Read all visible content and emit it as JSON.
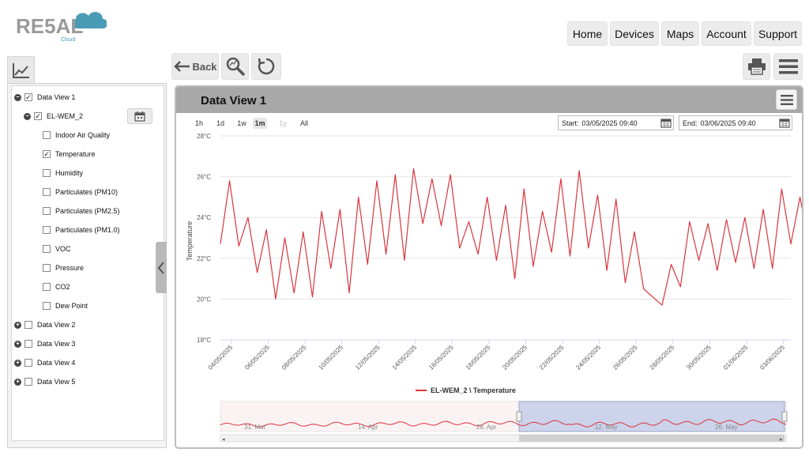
{
  "logo": {
    "text": "RE5AL",
    "sub": "Cloud"
  },
  "nav": [
    {
      "label": "Home"
    },
    {
      "label": "Devices"
    },
    {
      "label": "Maps"
    },
    {
      "label": "Account"
    },
    {
      "label": "Support"
    }
  ],
  "toolbar": {
    "back_label": "Back"
  },
  "tree": {
    "view1": "Data View 1",
    "device": "EL-WEM_2",
    "sensors": [
      {
        "label": "Indoor Air Quality",
        "checked": false
      },
      {
        "label": "Temperature",
        "checked": true
      },
      {
        "label": "Humidity",
        "checked": false
      },
      {
        "label": "Particulates (PM10)",
        "checked": false
      },
      {
        "label": "Particulates (PM2.5)",
        "checked": false
      },
      {
        "label": "Particulates (PM1.0)",
        "checked": false
      },
      {
        "label": "VOC",
        "checked": false
      },
      {
        "label": "Pressure",
        "checked": false
      },
      {
        "label": "CO2",
        "checked": false
      },
      {
        "label": "Dew Point",
        "checked": false
      }
    ],
    "other_views": [
      "Data View 2",
      "Data View 3",
      "Data View 4",
      "Data View 5"
    ]
  },
  "panel": {
    "title": "Data View 1"
  },
  "range_buttons": [
    "1h",
    "1d",
    "1w",
    "1m",
    "1y",
    "All"
  ],
  "range_selected": "1m",
  "range_disabled": "1y",
  "start": {
    "label": "Start:",
    "value": "03/05/2025 09:40"
  },
  "end": {
    "label": "End:",
    "value": "03/06/2025 09:40"
  },
  "colors": {
    "series": "#d9363e",
    "navigator_selection": "#b8c4e6"
  },
  "chart_data": {
    "type": "line",
    "ylabel": "Temperature",
    "y_ticks": [
      "28°C",
      "26°C",
      "24°C",
      "22°C",
      "20°C",
      "18°C"
    ],
    "ylim": [
      18,
      28
    ],
    "x_ticks": [
      "04/05/2025",
      "06/05/2025",
      "08/05/2025",
      "10/05/2025",
      "12/05/2025",
      "14/05/2025",
      "16/05/2025",
      "18/05/2025",
      "20/05/2025",
      "22/05/2025",
      "24/05/2025",
      "26/05/2025",
      "28/05/2025",
      "30/05/2025",
      "01/06/2025",
      "03/06/2025"
    ],
    "grid": true,
    "series": [
      {
        "name": "EL-WEM_2 \\ Temperature",
        "x_start": "03/05/2025 09:40",
        "x_step_hours": 12,
        "values": [
          22.7,
          25.8,
          22.6,
          24.0,
          21.3,
          23.4,
          20.0,
          23.0,
          20.3,
          23.3,
          20.1,
          24.3,
          21.5,
          24.4,
          20.3,
          25.0,
          21.7,
          25.8,
          22.2,
          26.1,
          21.9,
          26.4,
          23.7,
          25.9,
          23.6,
          26.1,
          22.5,
          23.8,
          22.2,
          25.0,
          21.9,
          24.6,
          21.0,
          25.4,
          21.6,
          24.3,
          22.3,
          25.9,
          22.1,
          26.3,
          22.5,
          25.1,
          21.4,
          24.9,
          20.8,
          23.3,
          20.5,
          20.1,
          19.7,
          21.7,
          20.6,
          23.8,
          21.9,
          23.7,
          21.4,
          23.9,
          21.8,
          24.0,
          21.5,
          24.4,
          21.5,
          25.4,
          22.7,
          25.0,
          22.6,
          25.6,
          22.7
        ],
        "legend_position": "bottom-center"
      }
    ],
    "navigator": {
      "labels": [
        "31. Mar",
        "14. Apr",
        "28. Apr",
        "12. May",
        "26. May"
      ]
    }
  }
}
